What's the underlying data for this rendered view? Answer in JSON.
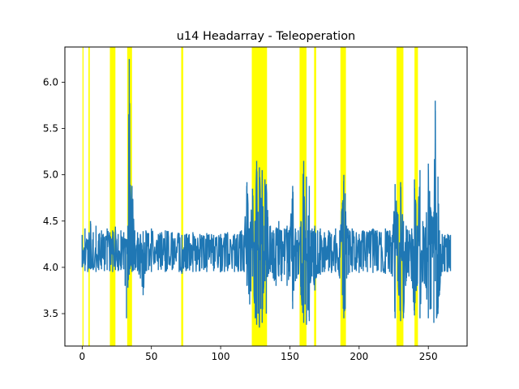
{
  "chart_data": {
    "type": "line",
    "title": "u14 Headarray - Teleoperation",
    "xlabel": "",
    "ylabel": "",
    "xlim": [
      -12.5,
      278
    ],
    "ylim": [
      3.15,
      6.38
    ],
    "x_ticks": [
      0,
      50,
      100,
      150,
      200,
      250
    ],
    "x_tick_labels": [
      "0",
      "50",
      "100",
      "150",
      "200",
      "250"
    ],
    "y_ticks": [
      3.5,
      4.0,
      4.5,
      5.0,
      5.5,
      6.0
    ],
    "y_tick_labels": [
      "3.5",
      "4.0",
      "4.5",
      "5.0",
      "5.5",
      "6.0"
    ],
    "grid": false,
    "legend": "none",
    "series_color": "#1f77b4",
    "highlight_color": "#ffff00",
    "highlight_spans": [
      [
        0.2,
        1.0
      ],
      [
        4.5,
        5.5
      ],
      [
        20.0,
        24.0
      ],
      [
        32.5,
        36.0
      ],
      [
        71.5,
        73.0
      ],
      [
        122.5,
        133.5
      ],
      [
        157.0,
        162.0
      ],
      [
        167.5,
        169.0
      ],
      [
        186.5,
        190.5
      ],
      [
        227.0,
        232.0
      ],
      [
        240.0,
        242.5
      ]
    ],
    "series": [
      {
        "x": [
          0,
          2,
          4,
          6,
          8,
          10,
          12,
          14,
          16,
          18,
          20,
          22,
          24,
          26,
          28,
          30,
          31,
          32,
          33,
          34,
          35,
          36,
          38,
          40,
          42,
          44,
          46,
          48,
          50,
          55,
          60,
          65,
          70,
          72,
          75,
          80,
          85,
          90,
          95,
          100,
          105,
          110,
          115,
          117,
          119,
          121,
          123,
          125,
          126,
          127,
          128,
          129,
          130,
          131,
          132,
          133,
          134,
          136,
          138,
          140,
          142,
          144,
          146,
          148,
          150,
          152,
          154,
          156,
          158,
          160,
          161,
          162,
          163,
          164,
          165,
          166,
          168,
          170,
          172,
          175,
          178,
          180,
          183,
          186,
          188,
          189,
          190,
          191,
          192,
          193,
          195,
          198,
          200,
          203,
          206,
          210,
          213,
          216,
          219,
          222,
          224,
          226,
          228,
          230,
          232,
          234,
          236,
          238,
          240,
          242,
          244,
          246,
          248,
          250,
          252,
          254,
          255,
          256,
          257,
          258,
          260,
          262,
          264,
          266
        ],
        "y_high": [
          4.35,
          4.42,
          4.3,
          4.5,
          4.38,
          4.45,
          4.36,
          4.4,
          4.33,
          4.42,
          4.38,
          4.4,
          4.44,
          4.36,
          4.4,
          4.38,
          4.3,
          4.22,
          4.45,
          6.25,
          4.7,
          4.88,
          4.4,
          4.38,
          4.36,
          4.39,
          4.4,
          4.37,
          4.42,
          4.36,
          4.4,
          4.38,
          4.37,
          4.35,
          4.36,
          4.38,
          4.36,
          4.37,
          4.35,
          4.36,
          4.38,
          4.36,
          4.4,
          4.35,
          4.92,
          4.4,
          4.85,
          4.5,
          5.15,
          4.6,
          5.08,
          4.7,
          5.05,
          4.45,
          4.95,
          4.9,
          4.62,
          4.45,
          4.4,
          4.42,
          4.5,
          4.4,
          4.42,
          4.45,
          4.4,
          4.88,
          4.42,
          4.4,
          4.5,
          5.15,
          4.4,
          4.98,
          4.4,
          4.88,
          4.4,
          4.42,
          4.45,
          4.4,
          4.42,
          4.38,
          4.4,
          4.36,
          4.42,
          4.4,
          4.7,
          5.0,
          4.8,
          4.45,
          4.42,
          4.4,
          4.42,
          4.38,
          4.36,
          4.4,
          4.38,
          4.42,
          4.4,
          4.38,
          4.42,
          4.4,
          4.35,
          4.9,
          4.55,
          4.92,
          4.5,
          4.45,
          4.4,
          4.42,
          4.95,
          4.45,
          5.05,
          4.5,
          4.42,
          5.12,
          4.6,
          4.6,
          5.8,
          4.55,
          4.98,
          4.4,
          4.36,
          4.35,
          4.36,
          4.35
        ],
        "y_low": [
          4.0,
          3.96,
          3.95,
          3.98,
          3.97,
          3.95,
          3.97,
          3.98,
          3.96,
          3.97,
          3.96,
          3.95,
          3.97,
          3.96,
          3.97,
          3.98,
          3.8,
          3.45,
          3.78,
          3.92,
          4.02,
          3.95,
          3.97,
          3.96,
          3.88,
          3.7,
          3.96,
          3.97,
          3.95,
          3.97,
          3.95,
          3.97,
          3.95,
          3.93,
          3.96,
          3.95,
          3.96,
          3.95,
          3.96,
          3.95,
          3.96,
          3.95,
          3.96,
          3.95,
          3.8,
          3.6,
          3.9,
          3.45,
          3.38,
          3.5,
          3.35,
          3.55,
          3.4,
          3.72,
          3.85,
          3.5,
          3.9,
          3.95,
          3.88,
          3.8,
          3.9,
          3.85,
          3.92,
          3.8,
          3.9,
          3.55,
          3.85,
          3.92,
          3.7,
          3.4,
          3.6,
          3.38,
          3.55,
          3.42,
          3.85,
          3.9,
          3.75,
          3.93,
          3.92,
          3.95,
          3.96,
          3.94,
          3.95,
          3.88,
          3.7,
          3.45,
          3.55,
          3.88,
          3.92,
          3.94,
          3.95,
          3.96,
          3.94,
          3.96,
          3.95,
          3.94,
          3.96,
          3.95,
          3.93,
          3.95,
          3.9,
          3.45,
          3.85,
          3.42,
          3.45,
          3.85,
          3.9,
          3.85,
          3.48,
          3.8,
          3.45,
          3.85,
          3.8,
          3.45,
          3.55,
          3.4,
          3.85,
          3.45,
          3.5,
          3.7,
          3.95,
          3.96,
          3.95,
          3.96
        ]
      }
    ]
  }
}
